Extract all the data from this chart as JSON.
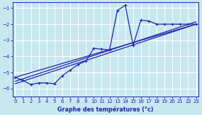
{
  "background_color": "#c8e8f0",
  "grid_color": "#ffffff",
  "line_color": "#2222aa",
  "title": "Graphe des températures (°c)",
  "xlim": [
    -0.3,
    23.3
  ],
  "ylim": [
    -6.5,
    -0.65
  ],
  "yticks": [
    -6,
    -5,
    -4,
    -3,
    -2,
    -1
  ],
  "xticks": [
    0,
    1,
    2,
    3,
    4,
    5,
    6,
    7,
    8,
    9,
    10,
    11,
    12,
    13,
    14,
    15,
    16,
    17,
    18,
    19,
    20,
    21,
    22,
    23
  ],
  "main_x": [
    0,
    1,
    2,
    3,
    4,
    5,
    6,
    7,
    8,
    9,
    10,
    11,
    12,
    13,
    14,
    15,
    16,
    17,
    18,
    19,
    20,
    21,
    22,
    23
  ],
  "main_y": [
    -5.3,
    -5.5,
    -5.75,
    -5.65,
    -5.65,
    -5.7,
    -5.2,
    -4.85,
    -4.5,
    -4.3,
    -3.5,
    -3.55,
    -3.6,
    -1.15,
    -0.82,
    -3.3,
    -1.75,
    -1.8,
    -2.0,
    -2.0,
    -2.0,
    -2.0,
    -2.0,
    -2.0
  ],
  "line1_x": [
    0,
    23
  ],
  "line1_y": [
    -5.3,
    -2.0
  ],
  "line2_x": [
    0,
    23
  ],
  "line2_y": [
    -5.55,
    -1.85
  ],
  "line3_x": [
    0,
    23
  ],
  "line3_y": [
    -5.7,
    -2.0
  ]
}
